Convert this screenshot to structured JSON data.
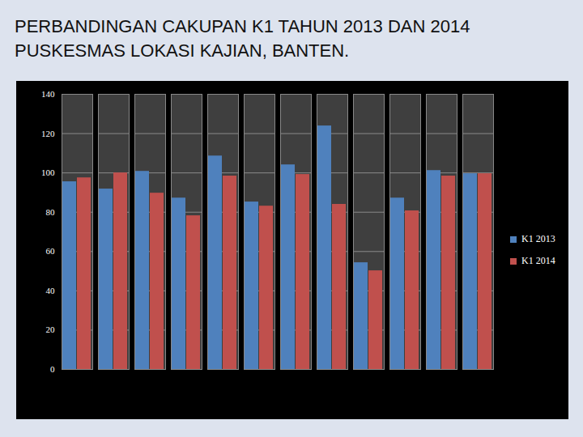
{
  "chart_data": {
    "type": "bar",
    "title": "PERBANDINGAN CAKUPAN K1 TAHUN 2013 DAN 2014 PUSKESMAS LOKASI KAJIAN, BANTEN.",
    "categories": [
      null,
      null,
      null,
      null,
      null,
      null,
      null,
      null,
      null,
      null,
      null,
      null
    ],
    "series": [
      {
        "name": "K1 2013",
        "color": "#4f81bd",
        "values": [
          95.5,
          91.8,
          100.8,
          87.2,
          108.6,
          85.2,
          104.1,
          123.9,
          54.3,
          87.2,
          101.2,
          99.6
        ]
      },
      {
        "name": "K1 2014",
        "color": "#c0504d",
        "values": [
          97.5,
          100,
          89.7,
          78.2,
          98.4,
          83.1,
          99.2,
          84,
          50.2,
          80.7,
          98.4,
          99.6
        ]
      }
    ],
    "ylim": [
      0,
      140
    ],
    "yticks": [
      0,
      20,
      40,
      60,
      80,
      100,
      120,
      140
    ],
    "grid": true,
    "legend": "right"
  }
}
